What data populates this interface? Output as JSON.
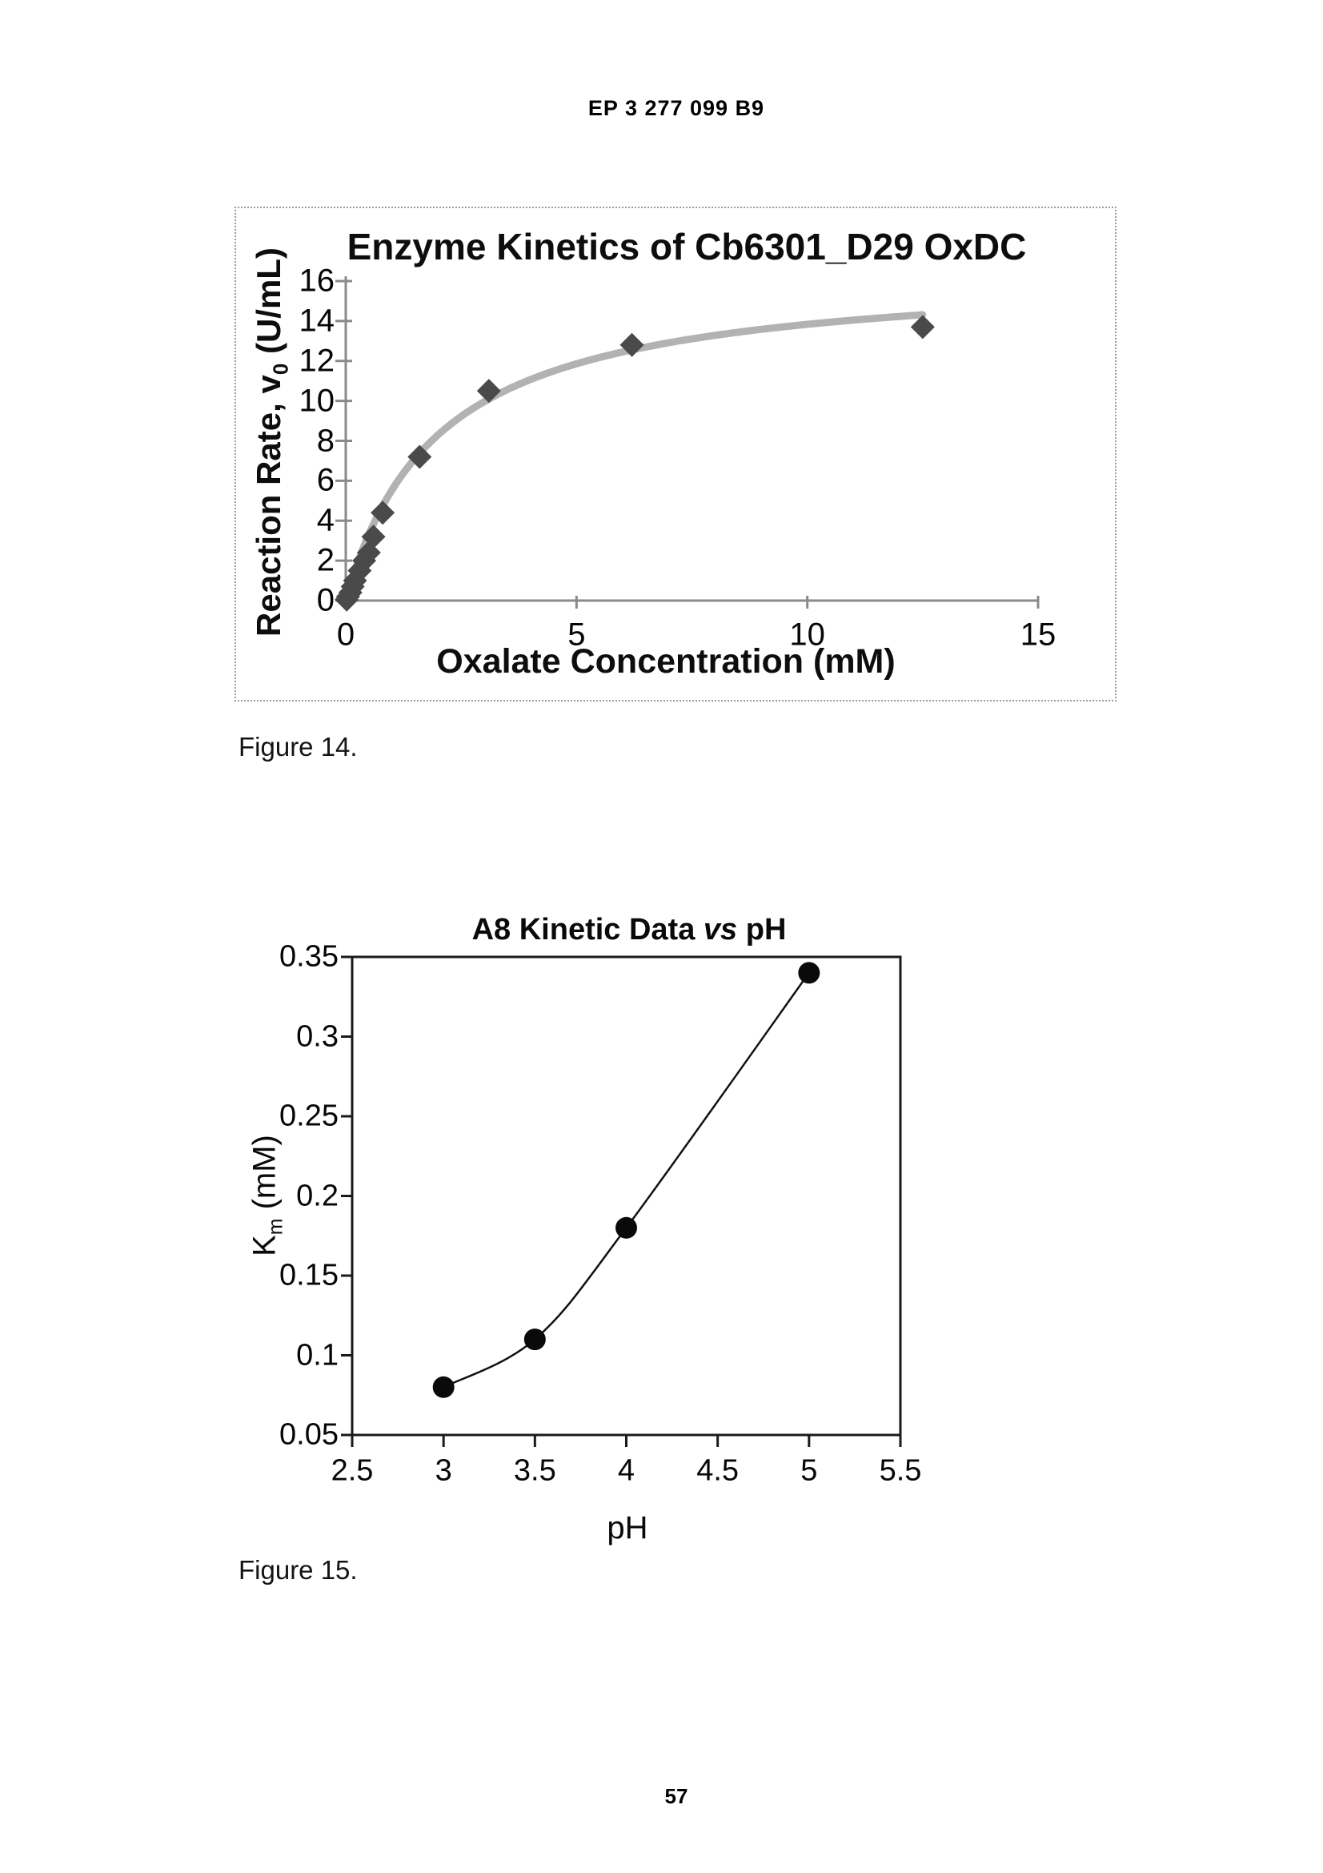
{
  "header": {
    "doc_number": "EP 3 277 099 B9"
  },
  "footer": {
    "page_number": "57"
  },
  "figures": [
    {
      "caption": "Figure 14."
    },
    {
      "caption": "Figure 15."
    }
  ],
  "chart_data": [
    {
      "type": "scatter",
      "title": "Enzyme Kinetics of Cb6301_D29 OxDC",
      "xlabel": "Oxalate Concentration (mM)",
      "ylabel": "Reaction Rate, v0 (U/mL)",
      "ylabel_parts": {
        "pre": "Reaction Rate, v",
        "sub": "0",
        "post": " (U/mL)"
      },
      "xlim": [
        0,
        15
      ],
      "ylim": [
        0,
        16
      ],
      "xticks": [
        0,
        5,
        10,
        15
      ],
      "xticklabels": [
        "0",
        "5",
        "10",
        "15"
      ],
      "yticks": [
        0,
        2,
        4,
        6,
        8,
        10,
        12,
        14,
        16
      ],
      "yticklabels": [
        "0",
        "2",
        "4",
        "6",
        "8",
        "10",
        "12",
        "14",
        "16"
      ],
      "grid": false,
      "legend": "none",
      "marker": "diamond",
      "points": [
        [
          0.02,
          0.05
        ],
        [
          0.05,
          0.2
        ],
        [
          0.1,
          0.4
        ],
        [
          0.15,
          0.7
        ],
        [
          0.2,
          1.0
        ],
        [
          0.3,
          1.5
        ],
        [
          0.4,
          2.0
        ],
        [
          0.5,
          2.4
        ],
        [
          0.6,
          3.2
        ],
        [
          0.8,
          4.4
        ],
        [
          1.6,
          7.2
        ],
        [
          3.1,
          10.5
        ],
        [
          6.2,
          12.8
        ],
        [
          12.5,
          13.7
        ]
      ],
      "fit_curve": {
        "model": "michaelis-menten",
        "Vmax": 16.6,
        "Km": 2.0,
        "x_range": [
          0,
          12.5
        ]
      },
      "colors": {
        "curve": "#b2b2b2",
        "marker": "#4a4a4a",
        "axis": "#8a8a8a",
        "text": "#000000"
      }
    },
    {
      "type": "line",
      "title": "A8 Kinetic Data vs pH",
      "title_parts": {
        "pre": "A8 Kinetic Data ",
        "italic": "vs",
        "post": " pH"
      },
      "xlabel": "pH",
      "ylabel": "Km (mM)",
      "ylabel_parts": {
        "pre": "K",
        "sub": "m",
        "post": " (mM)"
      },
      "xlim": [
        2.5,
        5.5
      ],
      "ylim": [
        0.05,
        0.35
      ],
      "xticks": [
        2.5,
        3,
        3.5,
        4,
        4.5,
        5,
        5.5
      ],
      "xticklabels": [
        "2.5",
        "3",
        "3.5",
        "4",
        "4.5",
        "5",
        "5.5"
      ],
      "yticks": [
        0.05,
        0.1,
        0.15,
        0.2,
        0.25,
        0.3,
        0.35
      ],
      "yticklabels": [
        "0.05",
        "0.1",
        "0.15",
        "0.2",
        "0.25",
        "0.3",
        "0.35"
      ],
      "grid": false,
      "legend": "none",
      "box": true,
      "marker": "circle",
      "points": [
        [
          3,
          0.08
        ],
        [
          3.5,
          0.11
        ],
        [
          4,
          0.18
        ],
        [
          5,
          0.34
        ]
      ],
      "colors": {
        "line": "#111111",
        "marker": "#0a0a0a",
        "axis": "#1a1a1a",
        "text": "#000000"
      }
    }
  ]
}
